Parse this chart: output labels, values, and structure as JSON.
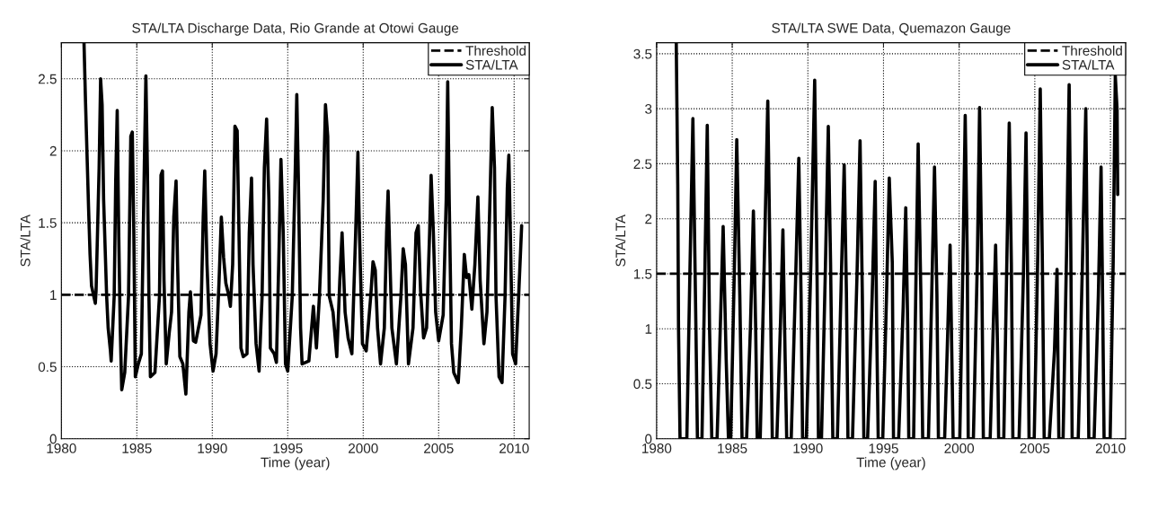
{
  "chart_data": [
    {
      "type": "line",
      "title": "STA/LTA Discharge Data, Rio Grande at Otowi Gauge",
      "xlabel": "Time (year)",
      "ylabel": "STA/LTA",
      "xlim": [
        1980,
        2011
      ],
      "xticks": [
        1980,
        1985,
        1990,
        1995,
        2000,
        2005,
        2010
      ],
      "ylim": [
        0,
        2.75
      ],
      "yticks": [
        0,
        0.5,
        1,
        1.5,
        2,
        2.5
      ],
      "grid": true,
      "legend": "top right",
      "ref_lines": [
        {
          "axis": "y",
          "value": 1,
          "label": "Threshold",
          "color": "#000000",
          "line_style": "dashed"
        }
      ],
      "series": [
        {
          "name": "STA/LTA",
          "color": "#000000",
          "x": [
            1981.5,
            1981.6,
            1981.8,
            1981.9,
            1982.0,
            1982.25,
            1982.3,
            1982.5,
            1982.6,
            1982.7,
            1982.8,
            1983.0,
            1983.1,
            1983.25,
            1983.3,
            1983.5,
            1983.6,
            1983.7,
            1983.8,
            1983.9,
            1984.0,
            1984.2,
            1984.45,
            1984.6,
            1984.7,
            1984.8,
            1984.9,
            1985.1,
            1985.3,
            1985.5,
            1985.6,
            1985.7,
            1985.8,
            1985.9,
            1986.2,
            1986.5,
            1986.6,
            1986.7,
            1986.8,
            1986.95,
            1987.15,
            1987.3,
            1987.45,
            1987.6,
            1987.7,
            1987.85,
            1988.05,
            1988.25,
            1988.45,
            1988.55,
            1988.75,
            1988.9,
            1989.25,
            1989.4,
            1989.5,
            1989.65,
            1989.85,
            1990.05,
            1990.25,
            1990.45,
            1990.6,
            1990.75,
            1990.9,
            1991.1,
            1991.2,
            1991.35,
            1991.5,
            1991.65,
            1991.75,
            1991.9,
            1992.05,
            1992.3,
            1992.45,
            1992.6,
            1992.7,
            1992.9,
            1993.1,
            1993.3,
            1993.45,
            1993.6,
            1993.75,
            1993.85,
            1994.1,
            1994.25,
            1994.4,
            1994.55,
            1994.7,
            1994.85,
            1995.0,
            1995.3,
            1995.5,
            1995.6,
            1995.7,
            1995.85,
            1995.95,
            1996.4,
            1996.7,
            1996.9,
            1997.1,
            1997.35,
            1997.5,
            1997.65,
            1997.75,
            1998.0,
            1998.25,
            1998.45,
            1998.6,
            1998.8,
            1999.0,
            1999.25,
            1999.5,
            1999.65,
            1999.75,
            1999.95,
            2000.2,
            2000.5,
            2000.65,
            2000.8,
            2000.95,
            2001.15,
            2001.4,
            2001.55,
            2001.65,
            2001.75,
            2001.9,
            2002.2,
            2002.5,
            2002.65,
            2002.8,
            2003.0,
            2003.3,
            2003.5,
            2003.65,
            2003.8,
            2004.0,
            2004.2,
            2004.4,
            2004.5,
            2004.65,
            2004.8,
            2005.0,
            2005.3,
            2005.5,
            2005.6,
            2005.7,
            2005.85,
            2006.0,
            2006.3,
            2006.5,
            2006.7,
            2006.85,
            2007.0,
            2007.2,
            2007.4,
            2007.6,
            2007.75,
            2008.0,
            2008.2,
            2008.4,
            2008.55,
            2008.7,
            2008.8,
            2009.0,
            2009.2,
            2009.4,
            2009.55,
            2009.65,
            2009.75,
            2009.9,
            2010.1,
            2010.3,
            2010.5
          ],
          "values": [
            2.75,
            2.34,
            1.61,
            1.28,
            1.06,
            0.94,
            1.03,
            1.88,
            2.5,
            2.32,
            1.66,
            0.99,
            0.77,
            0.61,
            0.54,
            0.99,
            1.79,
            2.28,
            1.43,
            0.77,
            0.34,
            0.46,
            0.99,
            2.1,
            2.13,
            1.43,
            0.43,
            0.52,
            0.59,
            1.92,
            2.52,
            1.88,
            0.99,
            0.43,
            0.46,
            0.99,
            1.83,
            1.86,
            1.1,
            0.52,
            0.74,
            0.88,
            1.54,
            1.79,
            1.21,
            0.57,
            0.52,
            0.31,
            0.88,
            1.02,
            0.68,
            0.67,
            0.86,
            1.54,
            1.86,
            1.21,
            0.66,
            0.47,
            0.59,
            1.1,
            1.54,
            1.26,
            1.08,
            0.99,
            0.92,
            1.21,
            2.17,
            2.14,
            1.54,
            0.63,
            0.57,
            0.59,
            1.43,
            1.81,
            1.21,
            0.66,
            0.47,
            0.99,
            1.88,
            2.22,
            1.66,
            0.63,
            0.59,
            0.53,
            1.21,
            1.94,
            1.43,
            0.52,
            0.47,
            0.99,
            1.88,
            2.39,
            1.83,
            0.77,
            0.52,
            0.54,
            0.92,
            0.63,
            0.99,
            1.66,
            2.32,
            2.1,
            0.99,
            0.88,
            0.57,
            1.1,
            1.43,
            0.88,
            0.7,
            0.59,
            1.43,
            1.99,
            1.43,
            0.66,
            0.61,
            0.99,
            1.23,
            1.17,
            0.77,
            0.52,
            0.77,
            1.43,
            1.72,
            1.32,
            0.77,
            0.52,
            0.99,
            1.32,
            1.21,
            0.52,
            0.77,
            1.43,
            1.48,
            1.03,
            0.7,
            0.77,
            1.43,
            1.83,
            1.43,
            0.88,
            0.68,
            0.86,
            1.66,
            2.48,
            1.66,
            0.66,
            0.46,
            0.39,
            0.77,
            1.28,
            1.12,
            1.14,
            0.9,
            1.21,
            1.68,
            1.1,
            0.66,
            0.88,
            1.66,
            2.3,
            1.88,
            0.99,
            0.43,
            0.39,
            0.99,
            1.74,
            1.97,
            1.43,
            0.59,
            0.52,
            0.99,
            1.48
          ]
        }
      ]
    },
    {
      "type": "line",
      "title": "STA/LTA SWE Data, Quemazon Gauge",
      "xlabel": "Time (year)",
      "ylabel": "STA/LTA",
      "xlim": [
        1980,
        2011
      ],
      "xticks": [
        1980,
        1985,
        1990,
        1995,
        2000,
        2005,
        2010
      ],
      "ylim": [
        0,
        3.6
      ],
      "yticks": [
        0,
        0.5,
        1,
        1.5,
        2,
        2.5,
        3,
        3.5
      ],
      "grid": true,
      "legend": "top right",
      "ref_lines": [
        {
          "axis": "y",
          "value": 1.5,
          "label": "Threshold",
          "color": "#000000",
          "line_style": "dashed"
        }
      ],
      "series": [
        {
          "name": "STA/LTA",
          "color": "#000000",
          "x": [
            1981.3,
            1981.4,
            1981.45,
            1981.55,
            1982.0,
            1982.2,
            1982.4,
            1982.6,
            1982.7,
            1983.0,
            1983.2,
            1983.35,
            1983.5,
            1983.65,
            1984.0,
            1984.25,
            1984.4,
            1984.6,
            1984.75,
            1984.9,
            1985.15,
            1985.3,
            1985.5,
            1985.65,
            1985.95,
            1986.2,
            1986.4,
            1986.55,
            1986.65,
            1986.85,
            1987.15,
            1987.35,
            1987.5,
            1987.65,
            1987.95,
            1988.2,
            1988.35,
            1988.5,
            1988.6,
            1988.9,
            1989.2,
            1989.4,
            1989.55,
            1989.65,
            1989.9,
            1990.2,
            1990.45,
            1990.6,
            1990.7,
            1990.9,
            1991.15,
            1991.35,
            1991.5,
            1991.65,
            1991.95,
            1992.2,
            1992.4,
            1992.55,
            1992.65,
            1992.95,
            1993.25,
            1993.45,
            1993.6,
            1993.7,
            1993.95,
            1994.25,
            1994.45,
            1994.55,
            1994.65,
            1994.95,
            1995.2,
            1995.38,
            1995.58,
            1995.66,
            1996.0,
            1996.3,
            1996.47,
            1996.6,
            1996.67,
            1996.99,
            1997.15,
            1997.29,
            1997.47,
            1997.59,
            1997.97,
            1998.2,
            1998.37,
            1998.53,
            1998.63,
            1999.04,
            1999.25,
            1999.4,
            1999.52,
            1999.6,
            2000.04,
            2000.25,
            2000.4,
            2000.54,
            2000.6,
            2000.94,
            2001.2,
            2001.35,
            2001.49,
            2001.6,
            2002.05,
            2002.25,
            2002.41,
            2002.55,
            2002.61,
            2002.95,
            2003.15,
            2003.31,
            2003.45,
            2003.55,
            2003.96,
            2004.25,
            2004.42,
            2004.54,
            2004.62,
            2004.96,
            2005.2,
            2005.36,
            2005.5,
            2005.62,
            2005.96,
            2006.3,
            2006.47,
            2006.53,
            2006.59,
            2006.87,
            2007.1,
            2007.27,
            2007.37,
            2007.47,
            2007.87,
            2008.15,
            2008.37,
            2008.47,
            2008.57,
            2008.92,
            2009.2,
            2009.38,
            2009.48,
            2009.58,
            2009.98,
            2010.18,
            2010.32,
            2010.44,
            2010.48
          ],
          "values": [
            3.6,
            2.31,
            1.01,
            0,
            0,
            1.5,
            2.91,
            1.01,
            0,
            0,
            1.6,
            2.85,
            1.01,
            0,
            0,
            1.2,
            1.93,
            0.72,
            0,
            0,
            1.6,
            2.72,
            1.31,
            0,
            0,
            1.0,
            2.07,
            1.01,
            0,
            0,
            1.8,
            3.07,
            1.6,
            0,
            0,
            1.1,
            1.9,
            0.72,
            0,
            0,
            1.5,
            2.55,
            1.31,
            0,
            0,
            1.6,
            3.26,
            1.6,
            0,
            0,
            1.5,
            2.84,
            1.6,
            0,
            0,
            1.4,
            2.49,
            1.31,
            0,
            0,
            1.5,
            2.71,
            1.31,
            0,
            0,
            1.3,
            2.34,
            1.01,
            0,
            0,
            1.3,
            2.37,
            1.6,
            0,
            0,
            1.2,
            2.1,
            1.01,
            0,
            0,
            1.5,
            2.68,
            1.31,
            0,
            0,
            1.4,
            2.47,
            1.31,
            0,
            0,
            1.0,
            1.76,
            0.72,
            0,
            0,
            1.6,
            2.94,
            1.6,
            0,
            0,
            1.6,
            3.01,
            1.6,
            0,
            0,
            1.0,
            1.76,
            0.72,
            0,
            0,
            1.6,
            2.87,
            1.6,
            0,
            0,
            1.5,
            2.78,
            1.31,
            0,
            0,
            1.7,
            3.18,
            1.6,
            0,
            0,
            0.8,
            1.54,
            0.72,
            0,
            0,
            1.7,
            3.22,
            1.9,
            0,
            0,
            1.6,
            3.0,
            1.6,
            0,
            0,
            1.3,
            2.47,
            1.31,
            0,
            0,
            1.6,
            3.3,
            2.99,
            2.22
          ]
        }
      ]
    }
  ]
}
